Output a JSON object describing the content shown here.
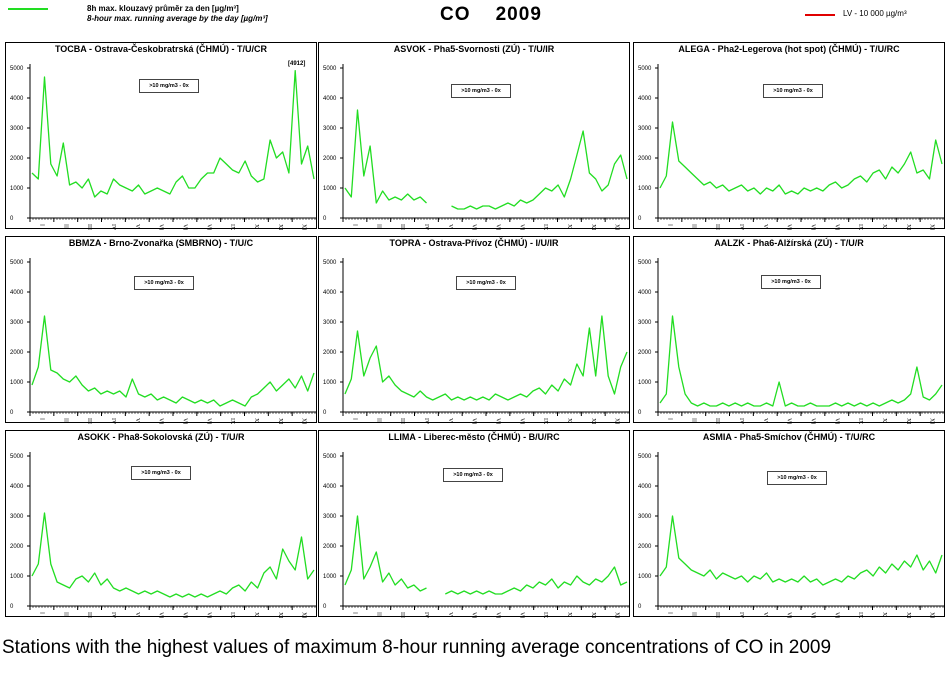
{
  "header": {
    "legend_green_line1": "8h max. klouzavý průměr za den [µg/m³]",
    "legend_green_line2": "8-hour max. running average by the day  [µg/m³]",
    "title": "CO    2009",
    "legend_red": "LV    - 10 000 µg/m³",
    "green_color": "#22dd22",
    "red_color": "#e00000"
  },
  "caption": "Stations with the highest values of maximum 8-hour running average concentrations of CO in 2009",
  "chart_data": [
    {
      "type": "line",
      "title": "TOCBA - Ostrava-Českobratrská (ČHMÚ) - T/U/CR",
      "ylim": [
        0,
        5000
      ],
      "yticks": [
        0,
        1000,
        2000,
        3000,
        4000,
        5000
      ],
      "months": [
        "I",
        "II",
        "III",
        "IV",
        "V",
        "VI",
        "VII",
        "VIII",
        "IX",
        "X",
        "XI",
        "XII"
      ],
      "box_text": ">10 mg/m3 - 0x",
      "annotation": "[4912]",
      "series": [
        {
          "values": [
            1500,
            1300,
            4700,
            1800,
            1400,
            2500,
            1100,
            1200,
            1000,
            1300,
            700,
            900,
            800,
            1300,
            1100,
            1000,
            900,
            1100,
            800,
            900,
            1000,
            900,
            800,
            1200,
            1400,
            1000,
            1000,
            1300,
            1500,
            1500,
            2000,
            1800,
            1600,
            1500,
            1900,
            1400,
            1200,
            1300,
            2600,
            2000,
            2200,
            1500,
            4912,
            1800,
            2400,
            1300
          ]
        }
      ]
    },
    {
      "type": "line",
      "title": "ASVOK - Pha5-Svornosti (ZÚ) - T/U/IR",
      "ylim": [
        0,
        5000
      ],
      "yticks": [
        0,
        1000,
        2000,
        3000,
        4000,
        5000
      ],
      "months": [
        "I",
        "II",
        "III",
        "IV",
        "V",
        "VI",
        "VII",
        "VIII",
        "IX",
        "X",
        "XI",
        "XII"
      ],
      "box_text": ">10 mg/m3 - 0x",
      "series": [
        {
          "values": [
            1000,
            700,
            3600,
            1400,
            2400,
            500,
            900,
            600,
            700,
            600,
            800,
            600,
            700,
            500,
            null,
            null,
            null,
            400,
            300,
            300,
            400,
            300,
            400,
            400,
            300,
            400,
            500,
            400,
            600,
            500,
            600,
            800,
            1000,
            900,
            1100,
            700,
            1300,
            2100,
            2900,
            1500,
            1300,
            900,
            1100,
            1800,
            2100,
            1300
          ]
        }
      ]
    },
    {
      "type": "line",
      "title": "ALEGA - Pha2-Legerova (hot spot) (ČHMÚ) - T/U/RC",
      "ylim": [
        0,
        5000
      ],
      "yticks": [
        0,
        1000,
        2000,
        3000,
        4000,
        5000
      ],
      "months": [
        "I",
        "II",
        "III",
        "IV",
        "V",
        "VI",
        "VII",
        "VIII",
        "IX",
        "X",
        "XI",
        "XII"
      ],
      "box_text": ">10 mg/m3 - 0x",
      "series": [
        {
          "values": [
            1000,
            1400,
            3200,
            1900,
            1700,
            1500,
            1300,
            1100,
            1200,
            1000,
            1100,
            900,
            1000,
            1100,
            900,
            1000,
            800,
            1000,
            900,
            1100,
            800,
            900,
            800,
            1000,
            900,
            1000,
            900,
            1100,
            1200,
            1000,
            1100,
            1300,
            1400,
            1200,
            1500,
            1600,
            1300,
            1700,
            1500,
            1800,
            2200,
            1500,
            1600,
            1300,
            2600,
            1800
          ]
        }
      ]
    },
    {
      "type": "line",
      "title": "BBMZA - Brno-Zvonařka (SMBRNO) - T/U/C",
      "ylim": [
        0,
        5000
      ],
      "yticks": [
        0,
        1000,
        2000,
        3000,
        4000,
        5000
      ],
      "months": [
        "I",
        "II",
        "III",
        "IV",
        "V",
        "VI",
        "VII",
        "VIII",
        "IX",
        "X",
        "XI",
        "XII"
      ],
      "box_text": ">10 mg/m3 - 0x",
      "series": [
        {
          "values": [
            900,
            1500,
            3200,
            1400,
            1300,
            1100,
            1000,
            1200,
            900,
            700,
            800,
            600,
            700,
            600,
            700,
            500,
            1100,
            600,
            500,
            600,
            400,
            500,
            400,
            300,
            500,
            400,
            300,
            400,
            300,
            400,
            200,
            300,
            400,
            300,
            200,
            500,
            600,
            800,
            1000,
            700,
            900,
            1100,
            800,
            1200,
            700,
            1300
          ]
        }
      ]
    },
    {
      "type": "line",
      "title": "TOPRA - Ostrava-Přívoz (ČHMÚ) - I/U/IR",
      "ylim": [
        0,
        5000
      ],
      "yticks": [
        0,
        1000,
        2000,
        3000,
        4000,
        5000
      ],
      "months": [
        "I",
        "II",
        "III",
        "IV",
        "V",
        "VI",
        "VII",
        "VIII",
        "IX",
        "X",
        "XI",
        "XII"
      ],
      "box_text": ">10 mg/m3 - 0x",
      "series": [
        {
          "values": [
            600,
            1100,
            2700,
            1200,
            1800,
            2200,
            1000,
            1200,
            900,
            700,
            600,
            500,
            700,
            500,
            400,
            500,
            600,
            400,
            500,
            400,
            500,
            400,
            500,
            400,
            600,
            500,
            400,
            500,
            600,
            500,
            700,
            800,
            600,
            900,
            700,
            1100,
            900,
            1600,
            1200,
            2800,
            1200,
            3200,
            1200,
            600,
            1500,
            2000
          ]
        }
      ]
    },
    {
      "type": "line",
      "title": "AALZK - Pha6-Alžírská (ZÚ) - T/U/R",
      "ylim": [
        0,
        5000
      ],
      "yticks": [
        0,
        1000,
        2000,
        3000,
        4000,
        5000
      ],
      "months": [
        "I",
        "II",
        "III",
        "IV",
        "V",
        "VI",
        "VII",
        "VIII",
        "IX",
        "X",
        "XI",
        "XII"
      ],
      "box_text": ">10 mg/m3 - 0x",
      "series": [
        {
          "values": [
            300,
            600,
            3200,
            1500,
            600,
            300,
            200,
            300,
            200,
            200,
            300,
            200,
            300,
            200,
            300,
            200,
            200,
            300,
            200,
            1000,
            200,
            300,
            200,
            200,
            300,
            200,
            200,
            200,
            300,
            200,
            300,
            200,
            300,
            200,
            300,
            200,
            300,
            400,
            300,
            400,
            600,
            1500,
            500,
            400,
            600,
            900
          ]
        }
      ]
    },
    {
      "type": "line",
      "title": "ASOKK - Pha8-Sokolovská (ZÚ) - T/U/R",
      "ylim": [
        0,
        5000
      ],
      "yticks": [
        0,
        1000,
        2000,
        3000,
        4000,
        5000
      ],
      "months": [
        "I",
        "II",
        "III",
        "IV",
        "V",
        "VI",
        "VII",
        "VIII",
        "IX",
        "X",
        "XI",
        "XII"
      ],
      "box_text": ">10 mg/m3 - 0x",
      "series": [
        {
          "values": [
            1000,
            1400,
            3100,
            1400,
            800,
            700,
            600,
            900,
            1000,
            800,
            1100,
            700,
            900,
            600,
            500,
            600,
            500,
            400,
            500,
            400,
            500,
            400,
            300,
            400,
            300,
            400,
            300,
            400,
            300,
            400,
            500,
            400,
            600,
            700,
            500,
            800,
            600,
            1100,
            1300,
            900,
            1900,
            1500,
            1200,
            2300,
            900,
            1200
          ]
        }
      ]
    },
    {
      "type": "line",
      "title": "LLIMA - Liberec-město (ČHMÚ) - B/U/RC",
      "ylim": [
        0,
        5000
      ],
      "yticks": [
        0,
        1000,
        2000,
        3000,
        4000,
        5000
      ],
      "months": [
        "I",
        "II",
        "III",
        "IV",
        "V",
        "VI",
        "VII",
        "VIII",
        "IX",
        "X",
        "XI",
        "XII"
      ],
      "box_text": ">10 mg/m3 - 0x",
      "series": [
        {
          "values": [
            700,
            1200,
            3000,
            900,
            1300,
            1800,
            800,
            1100,
            700,
            900,
            600,
            700,
            500,
            600,
            null,
            null,
            400,
            500,
            400,
            500,
            400,
            500,
            400,
            500,
            400,
            400,
            500,
            600,
            500,
            700,
            600,
            800,
            700,
            900,
            600,
            800,
            700,
            1000,
            800,
            700,
            900,
            800,
            1000,
            1300,
            700,
            800
          ]
        }
      ]
    },
    {
      "type": "line",
      "title": "ASMIA - Pha5-Smíchov (ČHMÚ) - T/U/RC",
      "ylim": [
        0,
        5000
      ],
      "yticks": [
        0,
        1000,
        2000,
        3000,
        4000,
        5000
      ],
      "months": [
        "I",
        "II",
        "III",
        "IV",
        "V",
        "VI",
        "VII",
        "VIII",
        "IX",
        "X",
        "XI",
        "XII"
      ],
      "box_text": ">10 mg/m3 - 0x",
      "series": [
        {
          "values": [
            1000,
            1300,
            3000,
            1600,
            1400,
            1200,
            1100,
            1000,
            1200,
            900,
            1100,
            1000,
            900,
            1000,
            800,
            1000,
            900,
            1100,
            800,
            900,
            800,
            900,
            800,
            1000,
            800,
            900,
            700,
            800,
            900,
            800,
            1000,
            900,
            1100,
            1200,
            1000,
            1300,
            1100,
            1400,
            1200,
            1500,
            1300,
            1700,
            1200,
            1500,
            1100,
            1700
          ]
        }
      ]
    }
  ]
}
